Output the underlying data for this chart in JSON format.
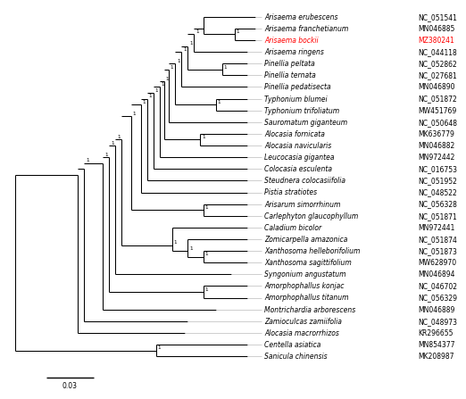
{
  "taxa": [
    {
      "name": "Arisaema erubescens",
      "accession": "NC_051541",
      "red": false
    },
    {
      "name": "Arisaema franchetianum",
      "accession": "MN046885",
      "red": false
    },
    {
      "name": "Arisaema bockii",
      "accession": "MZ380241",
      "red": true
    },
    {
      "name": "Arisaema ringens",
      "accession": "NC_044118",
      "red": false
    },
    {
      "name": "Pinellia peltata",
      "accession": "NC_052862",
      "red": false
    },
    {
      "name": "Pinellia ternata",
      "accession": "NC_027681",
      "red": false
    },
    {
      "name": "Pinellia pedatisecta",
      "accession": "MN046890",
      "red": false
    },
    {
      "name": "Typhonium blumei",
      "accession": "NC_051872",
      "red": false
    },
    {
      "name": "Typhonium trifoliatum",
      "accession": "MW451769",
      "red": false
    },
    {
      "name": "Sauromatum giganteum",
      "accession": "NC_050648",
      "red": false
    },
    {
      "name": "Alocasia fornicata",
      "accession": "MK636779",
      "red": false
    },
    {
      "name": "Alocasia navicularis",
      "accession": "MN046882",
      "red": false
    },
    {
      "name": "Leucocasia gigantea",
      "accession": "MN972442",
      "red": false
    },
    {
      "name": "Colocasia esculenta",
      "accession": "NC_016753",
      "red": false
    },
    {
      "name": "Steudnera colocasiifolia",
      "accession": "NC_051952",
      "red": false
    },
    {
      "name": "Pistia stratiotes",
      "accession": "NC_048522",
      "red": false
    },
    {
      "name": "Arisarum simorrhinum",
      "accession": "NC_056328",
      "red": false
    },
    {
      "name": "Carlephyton glaucophyllum",
      "accession": "NC_051871",
      "red": false
    },
    {
      "name": "Caladium bicolor",
      "accession": "MN972441",
      "red": false
    },
    {
      "name": "Zomicarpella amazonica",
      "accession": "NC_051874",
      "red": false
    },
    {
      "name": "Xanthosoma helleborifolium",
      "accession": "NC_051873",
      "red": false
    },
    {
      "name": "Xanthosoma sagittifolium",
      "accession": "MW628970",
      "red": false
    },
    {
      "name": "Syngonium angustatum",
      "accession": "MN046894",
      "red": false
    },
    {
      "name": "Amorphophallus konjac",
      "accession": "NC_046702",
      "red": false
    },
    {
      "name": "Amorphophallus titanum",
      "accession": "NC_056329",
      "red": false
    },
    {
      "name": "Montrichardia arborescens",
      "accession": "MN046889",
      "red": false
    },
    {
      "name": "Zamioculcas zamiifolia",
      "accession": "NC_048973",
      "red": false
    },
    {
      "name": "Alocasia macrorrhizos",
      "accession": "KR296655",
      "red": false
    },
    {
      "name": "Centella asiatica",
      "accession": "MN854377",
      "red": false
    },
    {
      "name": "Sanicula chinensis",
      "accession": "MK208987",
      "red": false
    }
  ],
  "line_color": "#000000",
  "gray_line_color": "#bbbbbb",
  "red_color": "#ff0000",
  "bg_color": "#ffffff",
  "font_size": 5.5,
  "acc_font_size": 5.5,
  "lw": 0.75,
  "scale_bar": 0.03,
  "scale_bar_label": "0.03"
}
